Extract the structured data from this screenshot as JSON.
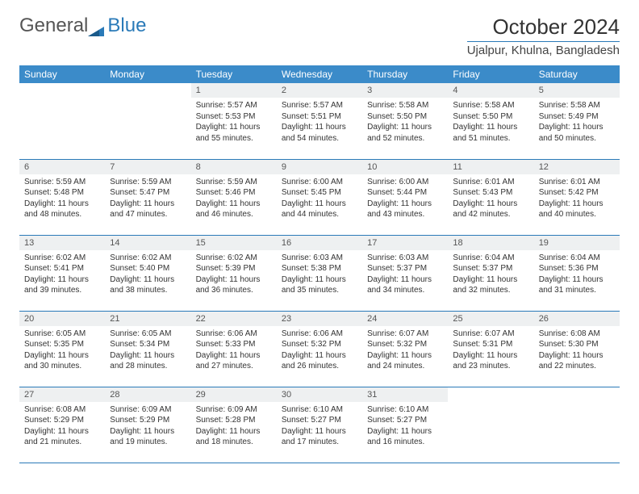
{
  "logo": {
    "text1": "General",
    "text2": "Blue"
  },
  "title": "October 2024",
  "location": "Ujalpur, Khulna, Bangladesh",
  "colors": {
    "header_bg": "#3b8bc9",
    "header_text": "#ffffff",
    "border": "#2a7ab8",
    "daynum_bg": "#eef0f1",
    "text": "#333333"
  },
  "dayNames": [
    "Sunday",
    "Monday",
    "Tuesday",
    "Wednesday",
    "Thursday",
    "Friday",
    "Saturday"
  ],
  "weeks": [
    [
      null,
      null,
      {
        "num": "1",
        "sunrise": "5:57 AM",
        "sunset": "5:53 PM",
        "daylight": "11 hours and 55 minutes."
      },
      {
        "num": "2",
        "sunrise": "5:57 AM",
        "sunset": "5:51 PM",
        "daylight": "11 hours and 54 minutes."
      },
      {
        "num": "3",
        "sunrise": "5:58 AM",
        "sunset": "5:50 PM",
        "daylight": "11 hours and 52 minutes."
      },
      {
        "num": "4",
        "sunrise": "5:58 AM",
        "sunset": "5:50 PM",
        "daylight": "11 hours and 51 minutes."
      },
      {
        "num": "5",
        "sunrise": "5:58 AM",
        "sunset": "5:49 PM",
        "daylight": "11 hours and 50 minutes."
      }
    ],
    [
      {
        "num": "6",
        "sunrise": "5:59 AM",
        "sunset": "5:48 PM",
        "daylight": "11 hours and 48 minutes."
      },
      {
        "num": "7",
        "sunrise": "5:59 AM",
        "sunset": "5:47 PM",
        "daylight": "11 hours and 47 minutes."
      },
      {
        "num": "8",
        "sunrise": "5:59 AM",
        "sunset": "5:46 PM",
        "daylight": "11 hours and 46 minutes."
      },
      {
        "num": "9",
        "sunrise": "6:00 AM",
        "sunset": "5:45 PM",
        "daylight": "11 hours and 44 minutes."
      },
      {
        "num": "10",
        "sunrise": "6:00 AM",
        "sunset": "5:44 PM",
        "daylight": "11 hours and 43 minutes."
      },
      {
        "num": "11",
        "sunrise": "6:01 AM",
        "sunset": "5:43 PM",
        "daylight": "11 hours and 42 minutes."
      },
      {
        "num": "12",
        "sunrise": "6:01 AM",
        "sunset": "5:42 PM",
        "daylight": "11 hours and 40 minutes."
      }
    ],
    [
      {
        "num": "13",
        "sunrise": "6:02 AM",
        "sunset": "5:41 PM",
        "daylight": "11 hours and 39 minutes."
      },
      {
        "num": "14",
        "sunrise": "6:02 AM",
        "sunset": "5:40 PM",
        "daylight": "11 hours and 38 minutes."
      },
      {
        "num": "15",
        "sunrise": "6:02 AM",
        "sunset": "5:39 PM",
        "daylight": "11 hours and 36 minutes."
      },
      {
        "num": "16",
        "sunrise": "6:03 AM",
        "sunset": "5:38 PM",
        "daylight": "11 hours and 35 minutes."
      },
      {
        "num": "17",
        "sunrise": "6:03 AM",
        "sunset": "5:37 PM",
        "daylight": "11 hours and 34 minutes."
      },
      {
        "num": "18",
        "sunrise": "6:04 AM",
        "sunset": "5:37 PM",
        "daylight": "11 hours and 32 minutes."
      },
      {
        "num": "19",
        "sunrise": "6:04 AM",
        "sunset": "5:36 PM",
        "daylight": "11 hours and 31 minutes."
      }
    ],
    [
      {
        "num": "20",
        "sunrise": "6:05 AM",
        "sunset": "5:35 PM",
        "daylight": "11 hours and 30 minutes."
      },
      {
        "num": "21",
        "sunrise": "6:05 AM",
        "sunset": "5:34 PM",
        "daylight": "11 hours and 28 minutes."
      },
      {
        "num": "22",
        "sunrise": "6:06 AM",
        "sunset": "5:33 PM",
        "daylight": "11 hours and 27 minutes."
      },
      {
        "num": "23",
        "sunrise": "6:06 AM",
        "sunset": "5:32 PM",
        "daylight": "11 hours and 26 minutes."
      },
      {
        "num": "24",
        "sunrise": "6:07 AM",
        "sunset": "5:32 PM",
        "daylight": "11 hours and 24 minutes."
      },
      {
        "num": "25",
        "sunrise": "6:07 AM",
        "sunset": "5:31 PM",
        "daylight": "11 hours and 23 minutes."
      },
      {
        "num": "26",
        "sunrise": "6:08 AM",
        "sunset": "5:30 PM",
        "daylight": "11 hours and 22 minutes."
      }
    ],
    [
      {
        "num": "27",
        "sunrise": "6:08 AM",
        "sunset": "5:29 PM",
        "daylight": "11 hours and 21 minutes."
      },
      {
        "num": "28",
        "sunrise": "6:09 AM",
        "sunset": "5:29 PM",
        "daylight": "11 hours and 19 minutes."
      },
      {
        "num": "29",
        "sunrise": "6:09 AM",
        "sunset": "5:28 PM",
        "daylight": "11 hours and 18 minutes."
      },
      {
        "num": "30",
        "sunrise": "6:10 AM",
        "sunset": "5:27 PM",
        "daylight": "11 hours and 17 minutes."
      },
      {
        "num": "31",
        "sunrise": "6:10 AM",
        "sunset": "5:27 PM",
        "daylight": "11 hours and 16 minutes."
      },
      null,
      null
    ]
  ],
  "labels": {
    "sunrise": "Sunrise:",
    "sunset": "Sunset:",
    "daylight": "Daylight:"
  }
}
